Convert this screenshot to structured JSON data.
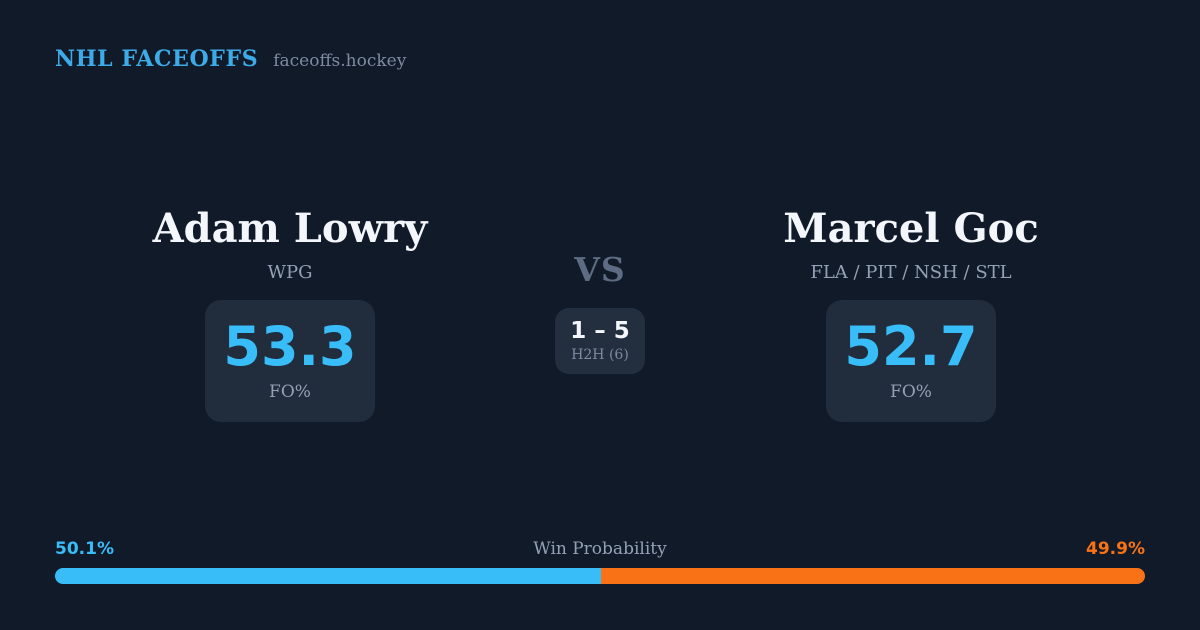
{
  "header": {
    "brand": "NHL FACEOFFS",
    "site": "faceoffs.hockey"
  },
  "players": [
    {
      "name": "Adam Lowry",
      "teams": "WPG",
      "fo_value": "53.3",
      "fo_label": "FO%"
    },
    {
      "name": "Marcel Goc",
      "teams": "FLA / PIT / NSH / STL",
      "fo_value": "52.7",
      "fo_label": "FO%"
    }
  ],
  "versus": {
    "label": "VS",
    "h2h_score": "1 – 5",
    "h2h_label": "H2H (6)"
  },
  "win_probability": {
    "title": "Win Probability",
    "left_label": "50.1%",
    "right_label": "49.9%",
    "left_pct": 50.1,
    "right_pct": 49.9
  },
  "colors": {
    "background": "#111a29",
    "card": "#212c3c",
    "h2h_box": "#232e3f",
    "brand_blue": "#3dabe8",
    "accent_blue": "#38bdf8",
    "accent_orange": "#f97316",
    "white_text": "#f3f6fa",
    "gray_text": "#94a1b5"
  }
}
